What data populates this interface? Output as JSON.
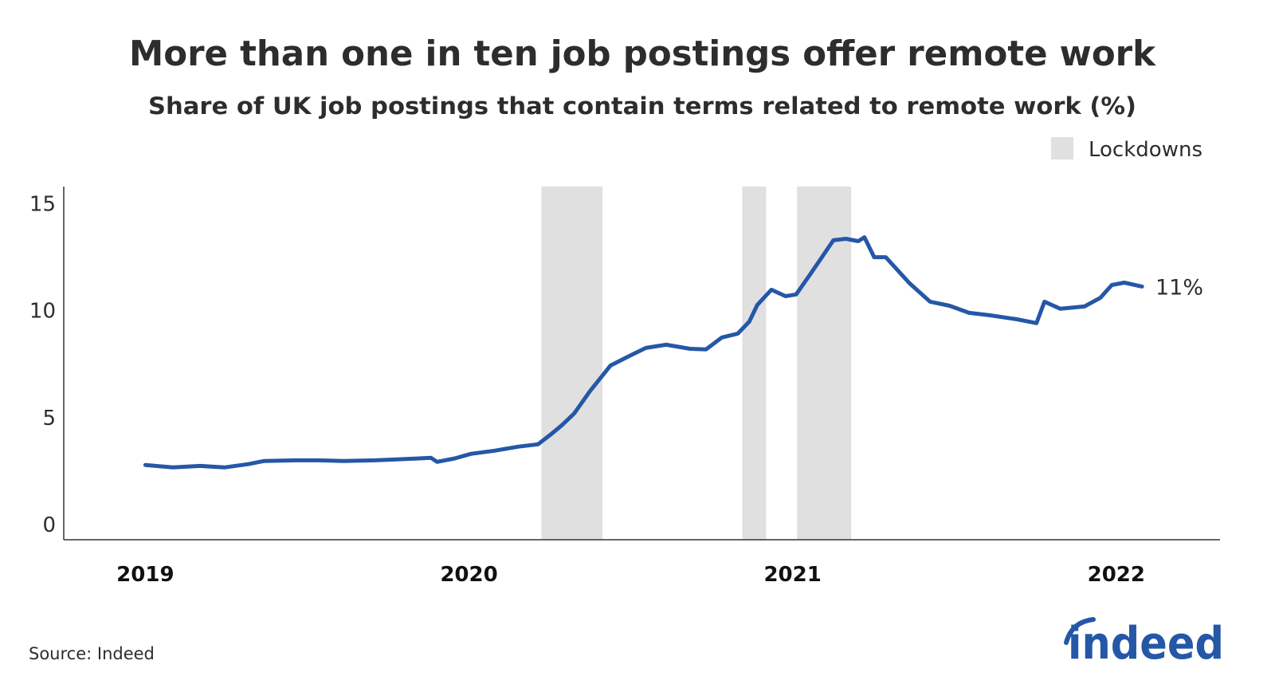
{
  "chart_data": {
    "type": "line",
    "title": "More than one in ten job postings offer remote work",
    "subtitle": "Share of UK job postings that contain terms related to remote work (%)",
    "xlabel": "",
    "ylabel": "",
    "x_ticks": [
      "2019",
      "2020",
      "2021",
      "2022"
    ],
    "y_ticks": [
      0,
      5,
      10,
      15
    ],
    "ylim": [
      -0.7,
      15.8
    ],
    "xlim": [
      "2018-10-01",
      "2022-04-28"
    ],
    "grid": false,
    "legend": {
      "position": "top-right",
      "entries": [
        "Lockdowns"
      ]
    },
    "shaded_periods": [
      {
        "label": "Lockdowns",
        "start": "2020-03-23",
        "end": "2020-05-31"
      },
      {
        "label": "Lockdowns",
        "start": "2020-11-05",
        "end": "2020-12-02"
      },
      {
        "label": "Lockdowns",
        "start": "2021-01-06",
        "end": "2021-03-08"
      }
    ],
    "end_label": "11%",
    "colors": {
      "line": "#2557a7",
      "shade": "#e0e0e0",
      "text": "#2d2d2d"
    },
    "series": [
      {
        "x": [
          "2019-01-01",
          "2019-02-01",
          "2019-03-04",
          "2019-03-31",
          "2019-04-27",
          "2019-05-15",
          "2019-06-20",
          "2019-07-16",
          "2019-08-12",
          "2019-09-17",
          "2019-11-01",
          "2019-11-19",
          "2019-11-26",
          "2019-12-16",
          "2020-01-03",
          "2020-01-30",
          "2020-02-26",
          "2020-03-19",
          "2020-04-02",
          "2020-04-15",
          "2020-04-29",
          "2020-05-17",
          "2020-06-09",
          "2020-07-01",
          "2020-07-19",
          "2020-08-11",
          "2020-09-07",
          "2020-09-25",
          "2020-10-13",
          "2020-10-31",
          "2020-11-13",
          "2020-11-22",
          "2020-12-08",
          "2020-12-24",
          "2021-01-05",
          "2021-01-20",
          "2021-02-03",
          "2021-02-16",
          "2021-03-02",
          "2021-03-16",
          "2021-03-23",
          "2021-04-03",
          "2021-04-16",
          "2021-05-13",
          "2021-06-05",
          "2021-06-27",
          "2021-07-19",
          "2021-08-11",
          "2021-09-11",
          "2021-10-03",
          "2021-10-12",
          "2021-10-30",
          "2021-11-26",
          "2021-12-14",
          "2021-12-27",
          "2022-01-10",
          "2022-01-30"
        ],
        "values": [
          2.79,
          2.68,
          2.75,
          2.68,
          2.83,
          2.98,
          3.01,
          3.01,
          2.98,
          3.01,
          3.09,
          3.13,
          2.94,
          3.1,
          3.31,
          3.46,
          3.65,
          3.76,
          4.2,
          4.65,
          5.2,
          6.25,
          7.44,
          7.9,
          8.26,
          8.41,
          8.22,
          8.19,
          8.75,
          8.93,
          9.49,
          10.27,
          10.98,
          10.68,
          10.76,
          11.65,
          12.5,
          13.29,
          13.36,
          13.25,
          13.43,
          12.5,
          12.5,
          11.28,
          10.42,
          10.23,
          9.9,
          9.79,
          9.6,
          9.42,
          10.42,
          10.09,
          10.2,
          10.6,
          11.2,
          11.31,
          11.13
        ]
      }
    ]
  },
  "source": "Source: Indeed",
  "logo": "indeed"
}
